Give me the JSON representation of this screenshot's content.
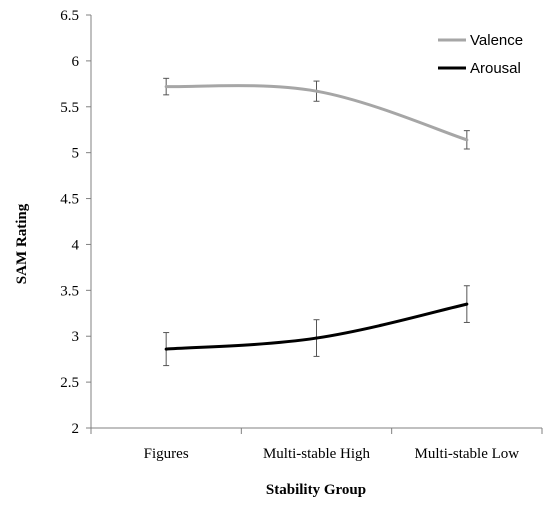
{
  "chart_data": {
    "type": "line",
    "title": "",
    "xlabel": "Stability Group",
    "ylabel": "SAM Rating",
    "categories": [
      "Figures",
      "Multi-stable High",
      "Multi-stable Low"
    ],
    "ylim": [
      2,
      6.5
    ],
    "yticks": [
      "2",
      "2.5",
      "3",
      "3.5",
      "4",
      "4.5",
      "5",
      "5.5",
      "6",
      "6.5"
    ],
    "grid": false,
    "legend_position": "top-right",
    "series": [
      {
        "name": "Valence",
        "color": "#a6a6a6",
        "values": [
          5.72,
          5.67,
          5.14
        ],
        "error": [
          0.09,
          0.11,
          0.1
        ]
      },
      {
        "name": "Arousal",
        "color": "#000000",
        "values": [
          2.86,
          2.98,
          3.35
        ],
        "error": [
          0.18,
          0.2,
          0.2
        ]
      }
    ]
  }
}
